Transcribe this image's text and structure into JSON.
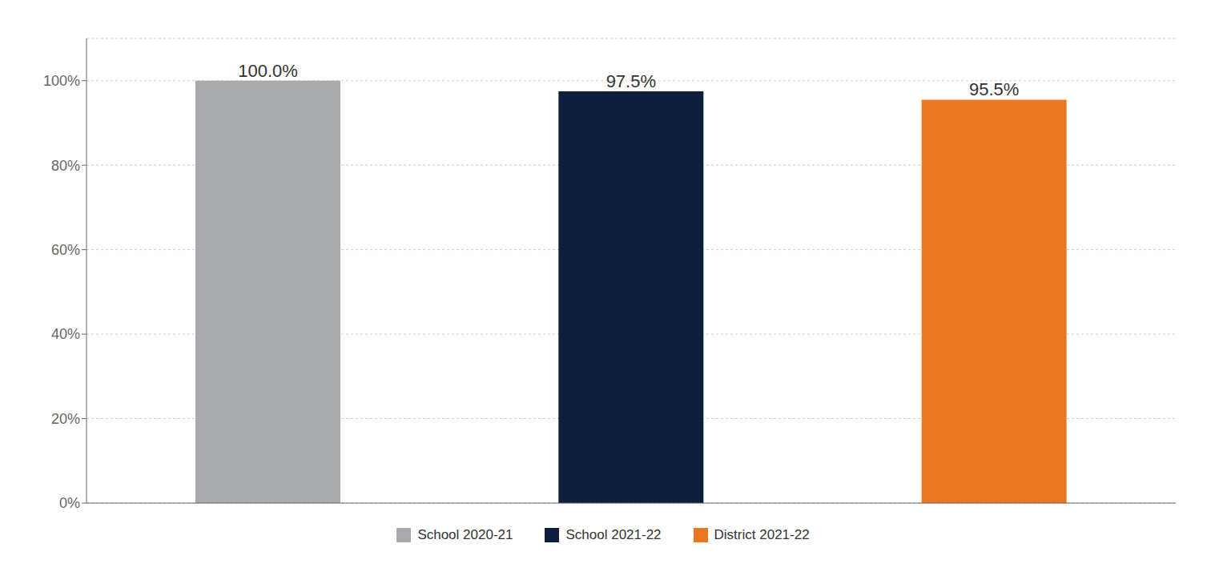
{
  "chart_data": {
    "type": "bar",
    "categories": [
      "School 2020-21",
      "School 2021-22",
      "District 2021-22"
    ],
    "values": [
      100.0,
      97.5,
      95.5
    ],
    "value_labels": [
      "100.0%",
      "97.5%",
      "95.5%"
    ],
    "colors": [
      "#A8AAAD",
      "#0D1F3C",
      "#E87722"
    ],
    "ylim": [
      0,
      110
    ],
    "yticks": [
      {
        "value": 0,
        "label": "0%"
      },
      {
        "value": 20,
        "label": "20%"
      },
      {
        "value": 40,
        "label": "40%"
      },
      {
        "value": 60,
        "label": "60%"
      },
      {
        "value": 80,
        "label": "80%"
      },
      {
        "value": 100,
        "label": "100%"
      }
    ],
    "grid": true,
    "legend": "bottom",
    "tick_labels": "y"
  }
}
